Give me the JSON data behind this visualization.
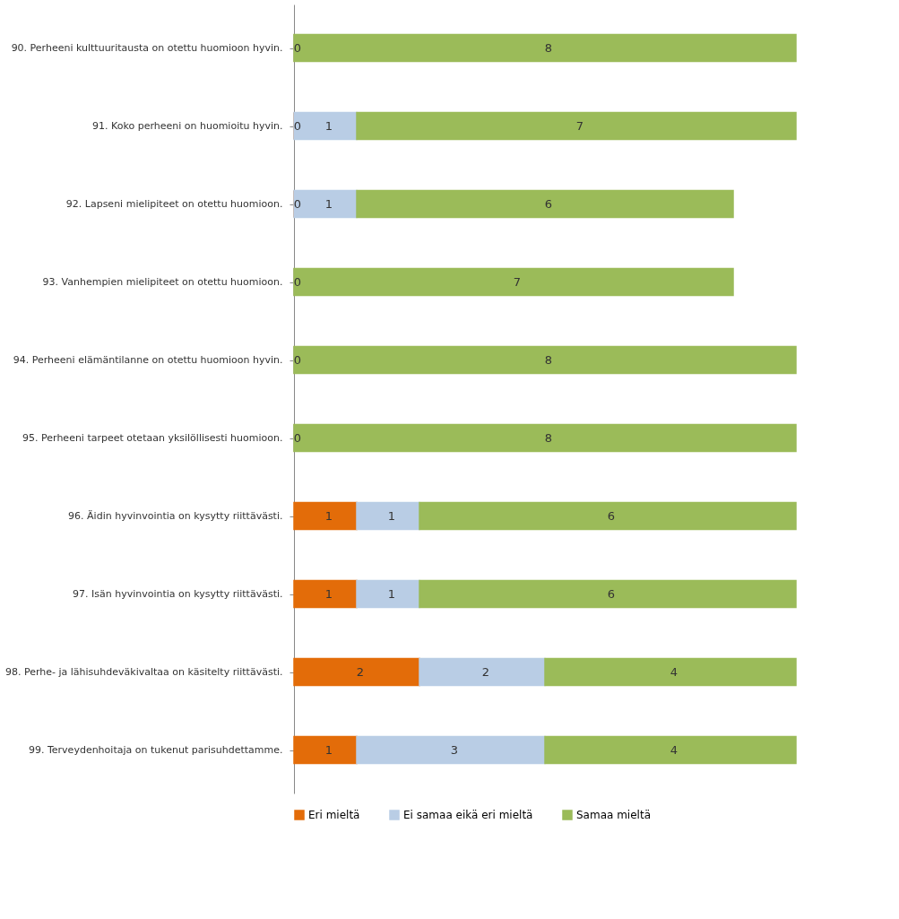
{
  "chart_data": {
    "type": "bar",
    "orientation": "horizontal",
    "stacked": true,
    "categories": [
      "90. Perheeni kulttuuritausta on otettu huomioon hyvin.",
      "91. Koko perheeni on huomioitu hyvin.",
      "92. Lapseni mielipiteet on otettu huomioon.",
      "93. Vanhempien mielipiteet on otettu huomioon.",
      "94. Perheeni elämäntilanne on otettu huomioon hyvin.",
      "95. Perheeni tarpeet otetaan yksilöllisesti huomioon.",
      "96. Äidin hyvinvointia on kysytty riittävästi.",
      "97. Isän hyvinvointia on kysytty riittävästi.",
      "98. Perhe- ja lähisuhdeväkivaltaa on käsitelty riittävästi.",
      "99. Terveydenhoitaja on tukenut parisuhdettamme."
    ],
    "series": [
      {
        "name": "Eri mieltä",
        "color": "#e36c09",
        "values": [
          0,
          0,
          0,
          0,
          0,
          0,
          1,
          1,
          2,
          1
        ],
        "value_labels": [
          "0",
          "0",
          "0",
          "0",
          "0",
          "0",
          "1",
          "1",
          "2",
          "1"
        ]
      },
      {
        "name": "Ei samaa eikä eri mieltä",
        "color": "#b9cde5",
        "values": [
          0,
          1,
          1,
          0,
          0,
          0,
          1,
          1,
          2,
          3
        ],
        "value_labels": [
          null,
          "1",
          "1",
          null,
          null,
          null,
          "1",
          "1",
          "2",
          "3"
        ]
      },
      {
        "name": "Samaa mieltä",
        "color": "#9bbb59",
        "values": [
          8,
          7,
          6,
          7,
          8,
          8,
          6,
          6,
          4,
          4
        ],
        "value_labels": [
          "8",
          "7",
          "6",
          "7",
          "8",
          "8",
          "6",
          "6",
          "4",
          "4"
        ]
      }
    ],
    "xlim": [
      0,
      8
    ],
    "tick_labels": "y",
    "legend": "bottom"
  }
}
